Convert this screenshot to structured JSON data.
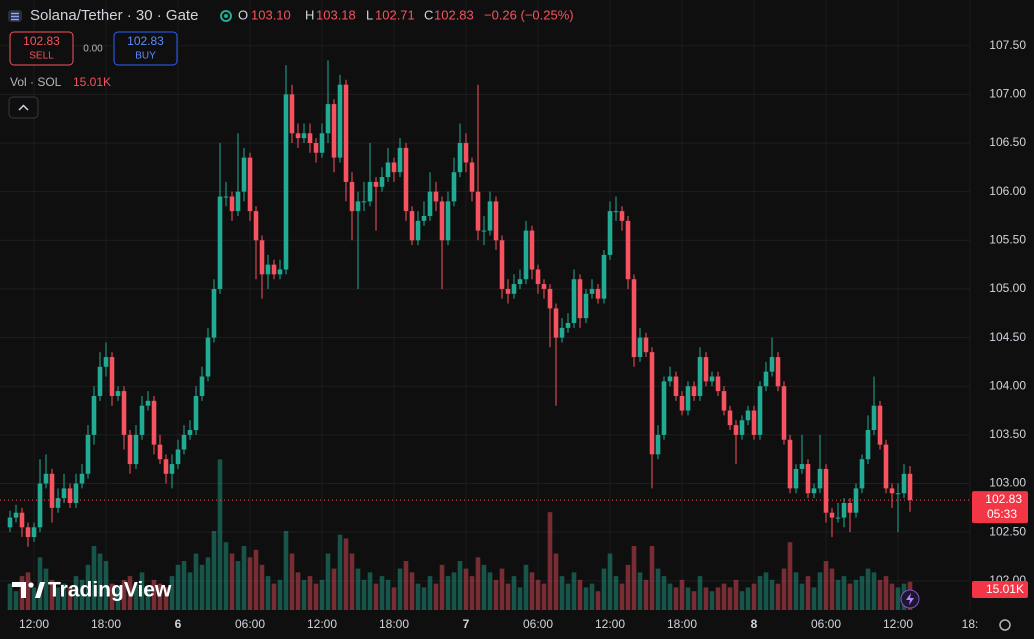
{
  "chart_data": {
    "type": "candlestick",
    "title": "Solana/Tether · 30 · Gate",
    "header": {
      "o_label": "O",
      "o": "103.10",
      "h_label": "H",
      "h": "103.18",
      "l_label": "L",
      "l": "102.71",
      "c_label": "C",
      "c": "102.83",
      "change": "−0.26 (−0.25%)"
    },
    "trade": {
      "sell_price": "102.83",
      "sell": "SELL",
      "spread": "0.00",
      "buy_price": "102.83",
      "buy": "BUY"
    },
    "volume_title": "Vol · SOL",
    "volume_label": "15.01K",
    "last_price_label": "102.83",
    "countdown": "05:33",
    "brand": "TradingView",
    "up_color": "#22ab94",
    "down_color": "#f7525f",
    "ylim": [
      101.7,
      107.97
    ],
    "yticks": [
      {
        "value": 107.5,
        "label": "107.50"
      },
      {
        "value": 107,
        "label": "107.00"
      },
      {
        "value": 106.5,
        "label": "106.50"
      },
      {
        "value": 106,
        "label": "106.00"
      },
      {
        "value": 105.5,
        "label": "105.50"
      },
      {
        "value": 105,
        "label": "105.00"
      },
      {
        "value": 104.5,
        "label": "104.50"
      },
      {
        "value": 104,
        "label": "104.00"
      },
      {
        "value": 103.5,
        "label": "103.50"
      },
      {
        "value": 103,
        "label": "103.00"
      },
      {
        "value": 102.5,
        "label": "102.50"
      },
      {
        "value": 102,
        "label": "102.00"
      }
    ],
    "xticks": [
      {
        "value": 4,
        "label": "12:00"
      },
      {
        "value": 16,
        "label": "18:00"
      },
      {
        "value": 28,
        "label": "6"
      },
      {
        "value": 40,
        "label": "06:00"
      },
      {
        "value": 52,
        "label": "12:00"
      },
      {
        "value": 64,
        "label": "18:00"
      },
      {
        "value": 76,
        "label": "7"
      },
      {
        "value": 88,
        "label": "06:00"
      },
      {
        "value": 100,
        "label": "12:00"
      },
      {
        "value": 112,
        "label": "18:00"
      },
      {
        "value": 124,
        "label": "8"
      },
      {
        "value": 136,
        "label": "06:00"
      },
      {
        "value": 148,
        "label": "12:00"
      },
      {
        "value": 160,
        "label": "18:"
      }
    ],
    "vlim": [
      0,
      85
    ],
    "candles": [
      [
        102.55,
        102.72,
        102.5,
        102.65
      ],
      [
        102.65,
        102.78,
        102.6,
        102.7
      ],
      [
        102.7,
        102.75,
        102.45,
        102.55
      ],
      [
        102.55,
        102.6,
        102.35,
        102.45
      ],
      [
        102.45,
        102.6,
        102.4,
        102.55
      ],
      [
        102.55,
        103.25,
        102.5,
        103.0
      ],
      [
        103.0,
        103.3,
        102.95,
        103.1
      ],
      [
        103.1,
        103.15,
        102.6,
        102.75
      ],
      [
        102.75,
        102.95,
        102.7,
        102.85
      ],
      [
        102.85,
        103.1,
        102.8,
        102.95
      ],
      [
        102.95,
        103.0,
        102.75,
        102.8
      ],
      [
        102.8,
        103.1,
        102.75,
        103.0
      ],
      [
        103.0,
        103.2,
        102.95,
        103.1
      ],
      [
        103.1,
        103.6,
        103.05,
        103.5
      ],
      [
        103.5,
        104.0,
        103.4,
        103.9
      ],
      [
        103.9,
        104.35,
        103.85,
        104.2
      ],
      [
        104.2,
        104.45,
        104.1,
        104.3
      ],
      [
        104.3,
        104.35,
        103.8,
        103.9
      ],
      [
        103.9,
        104.0,
        103.85,
        103.95
      ],
      [
        103.95,
        104.0,
        103.35,
        103.5
      ],
      [
        103.5,
        103.55,
        103.1,
        103.2
      ],
      [
        103.2,
        103.6,
        103.15,
        103.5
      ],
      [
        103.5,
        103.9,
        103.45,
        103.8
      ],
      [
        103.8,
        103.95,
        103.75,
        103.85
      ],
      [
        103.85,
        103.9,
        103.3,
        103.4
      ],
      [
        103.4,
        103.5,
        103.2,
        103.25
      ],
      [
        103.25,
        103.3,
        103.0,
        103.1
      ],
      [
        103.1,
        103.3,
        102.95,
        103.2
      ],
      [
        103.2,
        103.45,
        103.15,
        103.35
      ],
      [
        103.35,
        103.6,
        103.3,
        103.5
      ],
      [
        103.5,
        103.65,
        103.45,
        103.55
      ],
      [
        103.55,
        104.0,
        103.5,
        103.9
      ],
      [
        103.9,
        104.2,
        103.85,
        104.1
      ],
      [
        104.1,
        104.6,
        104.05,
        104.5
      ],
      [
        104.5,
        105.1,
        104.45,
        105.0
      ],
      [
        105.0,
        106.5,
        104.95,
        105.95
      ],
      [
        105.95,
        106.1,
        105.85,
        105.95
      ],
      [
        105.95,
        106.0,
        105.7,
        105.8
      ],
      [
        105.8,
        106.6,
        105.75,
        106.0
      ],
      [
        106.0,
        106.45,
        105.9,
        106.35
      ],
      [
        106.35,
        106.4,
        105.7,
        105.8
      ],
      [
        105.8,
        105.85,
        105.1,
        105.5
      ],
      [
        105.5,
        105.55,
        104.9,
        105.15
      ],
      [
        105.15,
        105.35,
        105.0,
        105.25
      ],
      [
        105.25,
        105.3,
        105.1,
        105.15
      ],
      [
        105.15,
        105.3,
        105.1,
        105.2
      ],
      [
        105.2,
        107.3,
        105.15,
        107.0
      ],
      [
        107.0,
        107.1,
        106.5,
        106.6
      ],
      [
        106.6,
        106.7,
        106.45,
        106.55
      ],
      [
        106.55,
        106.7,
        106.5,
        106.6
      ],
      [
        106.6,
        106.7,
        106.4,
        106.5
      ],
      [
        106.5,
        106.55,
        106.3,
        106.4
      ],
      [
        106.4,
        106.7,
        106.35,
        106.6
      ],
      [
        106.6,
        107.35,
        106.5,
        106.9
      ],
      [
        106.9,
        106.95,
        106.2,
        106.35
      ],
      [
        106.35,
        107.2,
        106.3,
        107.1
      ],
      [
        107.1,
        107.15,
        105.9,
        106.1
      ],
      [
        106.1,
        106.2,
        105.5,
        105.8
      ],
      [
        105.8,
        106.0,
        105.0,
        105.9
      ],
      [
        105.9,
        106.1,
        105.8,
        105.9
      ],
      [
        105.9,
        106.5,
        105.85,
        106.1
      ],
      [
        106.1,
        106.15,
        105.6,
        106.05
      ],
      [
        106.05,
        106.25,
        106.0,
        106.15
      ],
      [
        106.15,
        106.45,
        106.1,
        106.3
      ],
      [
        106.3,
        106.35,
        106.1,
        106.2
      ],
      [
        106.2,
        106.55,
        106.15,
        106.45
      ],
      [
        106.45,
        106.5,
        105.7,
        105.8
      ],
      [
        105.8,
        105.85,
        105.45,
        105.5
      ],
      [
        105.5,
        105.8,
        105.45,
        105.7
      ],
      [
        105.7,
        105.9,
        105.65,
        105.75
      ],
      [
        105.75,
        106.2,
        105.7,
        106.0
      ],
      [
        106.0,
        106.1,
        105.8,
        105.9
      ],
      [
        105.9,
        105.95,
        105.0,
        105.5
      ],
      [
        105.5,
        106.0,
        105.45,
        105.9
      ],
      [
        105.9,
        106.35,
        105.85,
        106.2
      ],
      [
        106.2,
        106.7,
        106.15,
        106.5
      ],
      [
        106.5,
        106.6,
        106.2,
        106.3
      ],
      [
        106.3,
        106.35,
        105.9,
        106.0
      ],
      [
        106.0,
        107.1,
        105.5,
        105.6
      ],
      [
        105.6,
        105.75,
        105.45,
        105.6
      ],
      [
        105.6,
        106.0,
        105.55,
        105.9
      ],
      [
        105.9,
        105.95,
        105.4,
        105.5
      ],
      [
        105.5,
        105.55,
        104.9,
        105.0
      ],
      [
        105.0,
        105.1,
        104.85,
        104.95
      ],
      [
        104.95,
        105.15,
        104.9,
        105.05
      ],
      [
        105.05,
        105.2,
        105.0,
        105.1
      ],
      [
        105.1,
        105.7,
        105.05,
        105.6
      ],
      [
        105.6,
        105.65,
        105.1,
        105.2
      ],
      [
        105.2,
        105.25,
        104.95,
        105.05
      ],
      [
        105.05,
        105.1,
        104.9,
        105.0
      ],
      [
        105.0,
        105.05,
        104.4,
        104.8
      ],
      [
        104.8,
        104.85,
        103.8,
        104.5
      ],
      [
        104.5,
        104.7,
        104.45,
        104.6
      ],
      [
        104.6,
        104.75,
        104.55,
        104.65
      ],
      [
        104.65,
        105.2,
        104.6,
        105.1
      ],
      [
        105.1,
        105.15,
        104.6,
        104.7
      ],
      [
        104.7,
        105.0,
        104.65,
        104.95
      ],
      [
        104.95,
        105.1,
        104.9,
        105.0
      ],
      [
        105.0,
        105.05,
        104.85,
        104.9
      ],
      [
        104.9,
        105.4,
        104.85,
        105.35
      ],
      [
        105.35,
        105.9,
        105.3,
        105.8
      ],
      [
        105.8,
        105.95,
        105.7,
        105.8
      ],
      [
        105.8,
        105.85,
        105.6,
        105.7
      ],
      [
        105.7,
        105.75,
        105.0,
        105.1
      ],
      [
        105.1,
        105.15,
        104.2,
        104.3
      ],
      [
        104.3,
        104.6,
        104.25,
        104.5
      ],
      [
        104.5,
        104.55,
        104.3,
        104.35
      ],
      [
        104.35,
        104.4,
        102.95,
        103.3
      ],
      [
        103.3,
        103.6,
        103.25,
        103.5
      ],
      [
        103.5,
        104.1,
        103.45,
        104.05
      ],
      [
        104.05,
        104.2,
        104.0,
        104.1
      ],
      [
        104.1,
        104.15,
        103.85,
        103.9
      ],
      [
        103.9,
        103.95,
        103.7,
        103.75
      ],
      [
        103.75,
        104.05,
        103.7,
        104.0
      ],
      [
        104.0,
        104.05,
        103.85,
        103.9
      ],
      [
        103.9,
        104.4,
        103.85,
        104.3
      ],
      [
        104.3,
        104.35,
        104.0,
        104.05
      ],
      [
        104.05,
        104.15,
        104.0,
        104.1
      ],
      [
        104.1,
        104.15,
        103.9,
        103.95
      ],
      [
        103.95,
        104.0,
        103.7,
        103.75
      ],
      [
        103.75,
        103.8,
        103.55,
        103.6
      ],
      [
        103.6,
        103.65,
        103.2,
        103.5
      ],
      [
        103.5,
        103.7,
        103.45,
        103.65
      ],
      [
        103.65,
        103.8,
        103.6,
        103.75
      ],
      [
        103.75,
        103.8,
        103.45,
        103.5
      ],
      [
        103.5,
        104.05,
        103.45,
        104.0
      ],
      [
        104.0,
        104.25,
        103.95,
        104.15
      ],
      [
        104.15,
        104.5,
        104.1,
        104.3
      ],
      [
        104.3,
        104.35,
        103.95,
        104.0
      ],
      [
        104.0,
        104.05,
        103.4,
        103.45
      ],
      [
        103.45,
        103.5,
        102.9,
        102.95
      ],
      [
        102.95,
        103.2,
        102.9,
        103.15
      ],
      [
        103.15,
        103.5,
        103.1,
        103.2
      ],
      [
        103.2,
        103.25,
        102.85,
        102.9
      ],
      [
        102.9,
        103.0,
        102.85,
        102.95
      ],
      [
        102.95,
        103.5,
        102.9,
        103.15
      ],
      [
        103.15,
        103.2,
        102.6,
        102.7
      ],
      [
        102.7,
        102.75,
        102.45,
        102.65
      ],
      [
        102.65,
        102.8,
        102.6,
        102.65
      ],
      [
        102.65,
        102.85,
        102.55,
        102.8
      ],
      [
        102.8,
        102.85,
        102.5,
        102.7
      ],
      [
        102.7,
        103.0,
        102.65,
        102.95
      ],
      [
        102.95,
        103.3,
        102.9,
        103.25
      ],
      [
        103.25,
        103.7,
        103.2,
        103.55
      ],
      [
        103.55,
        104.1,
        103.5,
        103.8
      ],
      [
        103.8,
        103.85,
        103.35,
        103.4
      ],
      [
        103.4,
        103.45,
        102.9,
        102.95
      ],
      [
        102.95,
        103.0,
        102.75,
        102.9
      ],
      [
        102.9,
        103.0,
        102.5,
        102.9
      ],
      [
        102.9,
        103.2,
        102.85,
        103.1
      ],
      [
        103.1,
        103.18,
        102.71,
        102.83
      ]
    ],
    "volumes": [
      14,
      10,
      18,
      20,
      12,
      28,
      22,
      16,
      12,
      14,
      12,
      18,
      16,
      24,
      34,
      30,
      26,
      14,
      12,
      16,
      18,
      14,
      20,
      12,
      16,
      14,
      12,
      18,
      24,
      26,
      20,
      30,
      24,
      28,
      42,
      80,
      36,
      30,
      26,
      34,
      28,
      32,
      24,
      18,
      14,
      16,
      42,
      30,
      20,
      16,
      18,
      14,
      16,
      30,
      22,
      40,
      38,
      30,
      22,
      16,
      20,
      14,
      18,
      16,
      12,
      22,
      26,
      20,
      14,
      12,
      18,
      14,
      24,
      18,
      20,
      26,
      22,
      18,
      28,
      24,
      20,
      16,
      22,
      14,
      18,
      12,
      24,
      20,
      16,
      14,
      52,
      30,
      18,
      14,
      20,
      16,
      12,
      14,
      10,
      22,
      30,
      18,
      14,
      24,
      34,
      20,
      16,
      34,
      22,
      18,
      14,
      12,
      16,
      12,
      10,
      18,
      12,
      10,
      12,
      14,
      12,
      16,
      10,
      12,
      14,
      18,
      20,
      16,
      14,
      22,
      36,
      20,
      14,
      18,
      12,
      20,
      26,
      22,
      16,
      18,
      14,
      16,
      18,
      22,
      20,
      16,
      18,
      14,
      12,
      14,
      15.01
    ]
  }
}
